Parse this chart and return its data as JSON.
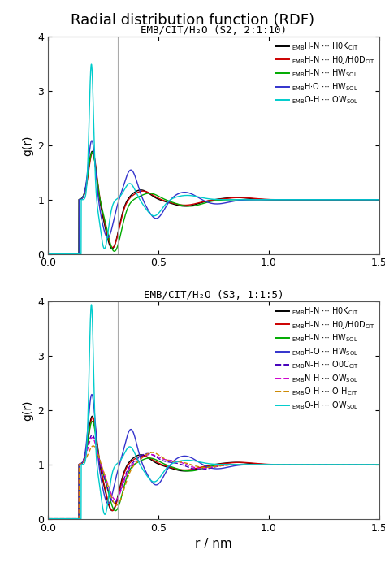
{
  "title": "Radial distribution function (RDF)",
  "subtitle1": "EMB/CIT/H₂O (S2, 2:1:10)",
  "subtitle2": "EMB/CIT/H₂O (S3, 1:1:5)",
  "xlabel": "r / nm",
  "ylabel": "g(r)",
  "xlim": [
    0,
    1.5
  ],
  "ylim": [
    0,
    4
  ],
  "yticks": [
    0,
    1,
    2,
    3,
    4
  ],
  "xticks": [
    0,
    0.5,
    1.0,
    1.5
  ],
  "vline_x": 0.315,
  "bg_color": "#ffffff",
  "title_fontsize": 13,
  "subtitle_fontsize": 9,
  "axis_fontsize": 10,
  "legend_fontsize": 7,
  "tick_fontsize": 9,
  "panel1_colors": [
    "#000000",
    "#cc0000",
    "#00aa00",
    "#3333cc",
    "#00cccc"
  ],
  "panel1_ls": [
    "-",
    "-",
    "-",
    "-",
    "-"
  ],
  "panel2_colors": [
    "#000000",
    "#cc0000",
    "#00aa00",
    "#3333cc",
    "#4400bb",
    "#cc00cc",
    "#cc8800",
    "#00cccc"
  ],
  "panel2_ls": [
    "-",
    "-",
    "-",
    "-",
    "--",
    "--",
    "--",
    "-"
  ]
}
